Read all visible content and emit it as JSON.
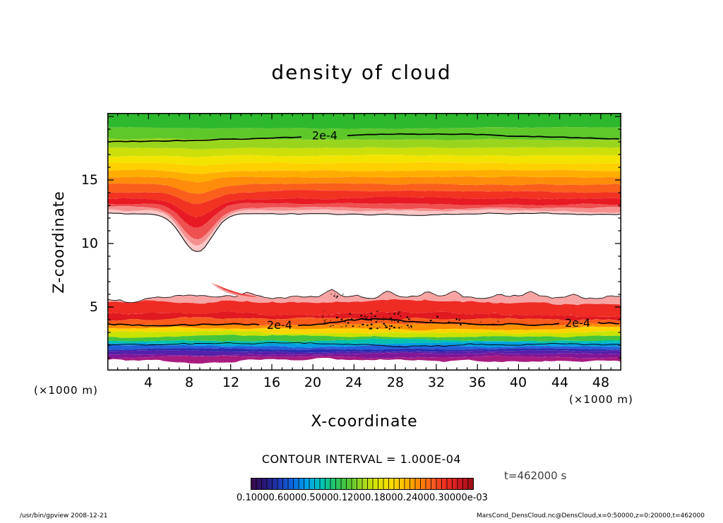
{
  "page": {
    "footer_left": "/usr/bin/gpview  2008-12-21",
    "footer_right": "MarsCond_DensCloud.nc@DensCloud,x=0:50000,z=0:20000,t=462000"
  },
  "chart_data": {
    "type": "filled_contour",
    "title": "density of cloud",
    "xlabel": "X-coordinate",
    "ylabel": "Z-coordinate",
    "x_unit_left": "(×1000 m)",
    "x_unit_right": "(×1000 m)",
    "xlim": [
      0,
      50
    ],
    "zlim": [
      0,
      20.3
    ],
    "x_ticks": [
      4,
      8,
      12,
      16,
      20,
      24,
      28,
      32,
      36,
      40,
      44,
      48
    ],
    "z_ticks": [
      15,
      10,
      5
    ],
    "grid": false,
    "contour_interval": "CONTOUR INTERVAL = 1.000E-04",
    "contour_label": "2e-4",
    "time_label": "t=462000 s",
    "colorbar": {
      "labels_overlapped": "0.10000.60000.50000.12000.18000.24000.30000e-03",
      "colors": [
        "#3a0a4a",
        "#28187c",
        "#1c3ab4",
        "#0a6ae0",
        "#00a0e8",
        "#00c4bc",
        "#22c466",
        "#52c632",
        "#a0d820",
        "#d8e400",
        "#f8df00",
        "#ffbe00",
        "#ff9000",
        "#f86020",
        "#ee2e20",
        "#cf1820",
        "#9c0e14"
      ],
      "segments": 42
    },
    "upper_cloud": {
      "dip_x": 8.7,
      "dip_w": 1.5,
      "outline_bottom": 1.0,
      "edges": [
        {
          "z": 20.4,
          "noise": 0,
          "dip": 0
        },
        {
          "z": 19.1,
          "noise": 0.05,
          "dip": 0
        },
        {
          "z": 18.2,
          "noise": 0.06,
          "dip": 0.03
        },
        {
          "z": 17.5,
          "noise": 0.06,
          "dip": 0.06
        },
        {
          "z": 16.9,
          "noise": 0.06,
          "dip": 0.12
        },
        {
          "z": 16.3,
          "noise": 0.06,
          "dip": 0.2
        },
        {
          "z": 15.75,
          "noise": 0.06,
          "dip": 0.3
        },
        {
          "z": 15.2,
          "noise": 0.06,
          "dip": 0.45
        },
        {
          "z": 14.65,
          "noise": 0.06,
          "dip": 0.65
        },
        {
          "z": 14.1,
          "noise": 0.07,
          "dip": 0.95
        },
        {
          "z": 13.55,
          "noise": 0.07,
          "dip": 1.4
        },
        {
          "z": 13.1,
          "noise": 0.07,
          "dip": 1.95
        },
        {
          "z": 12.8,
          "noise": 0.07,
          "dip": 2.45
        },
        {
          "z": 12.55,
          "noise": 0.08,
          "dip": 2.75
        },
        {
          "z": 12.35,
          "noise": 0.08,
          "dip": 3.05
        }
      ],
      "colors": [
        "#2eb82e",
        "#5ec72a",
        "#9ad51e",
        "#ccdf0a",
        "#f2e400",
        "#ffd000",
        "#ffae00",
        "#ff8c0a",
        "#fa5f1c",
        "#f23322",
        "#e81a24",
        "#ef5050",
        "#f59090",
        "#fac6c6"
      ]
    },
    "lower_cloud": {
      "outline_top": 0.8,
      "edges": [
        {
          "z": 5.72,
          "noise": 0.2,
          "bumps": [
            {
              "x": 13.9,
              "h": 0.35,
              "w": 0.6
            },
            {
              "x": 21.9,
              "h": 0.55,
              "w": 0.5
            },
            {
              "x": 24.3,
              "h": 0.3,
              "w": 0.4
            },
            {
              "x": 27.2,
              "h": 0.45,
              "w": 0.45
            },
            {
              "x": 31.2,
              "h": 0.3,
              "w": 0.5
            },
            {
              "x": 33.8,
              "h": 0.35,
              "w": 0.45
            },
            {
              "x": 38.2,
              "h": 0.3,
              "w": 0.4
            },
            {
              "x": 41.2,
              "h": 0.4,
              "w": 0.45
            },
            {
              "x": 45.5,
              "h": 0.3,
              "w": 0.5
            }
          ]
        },
        {
          "z": 5.38,
          "noise": 0.17
        },
        {
          "z": 4.45,
          "noise": 0.14
        },
        {
          "z": 4.05,
          "noise": 0.12
        },
        {
          "z": 3.68,
          "noise": 0.1
        },
        {
          "z": 3.3,
          "noise": 0.1
        },
        {
          "z": 2.98,
          "noise": 0.09
        },
        {
          "z": 2.68,
          "noise": 0.08
        },
        {
          "z": 2.42,
          "noise": 0.08
        },
        {
          "z": 2.16,
          "noise": 0.07
        },
        {
          "z": 1.94,
          "noise": 0.07
        },
        {
          "z": 1.72,
          "noise": 0.06
        },
        {
          "z": 1.5,
          "noise": 0.06
        },
        {
          "z": 1.28,
          "noise": 0.07
        },
        {
          "z": 1.05,
          "noise": 0.09
        },
        {
          "z": 0.8,
          "noise": 0.13
        }
      ],
      "colors": [
        "#f7a4a4",
        "#ee2c24",
        "#e01a20",
        "#f85c1c",
        "#ff9000",
        "#ffd400",
        "#c8e400",
        "#46c43c",
        "#00c0b0",
        "#009ee2",
        "#2160d8",
        "#2b2cb0",
        "#5520aa",
        "#801698",
        "#a81c80"
      ]
    },
    "contour_lines": [
      {
        "base": 17.9,
        "arch_h": 0.72,
        "arch_x": 30,
        "arch_w": 13,
        "noise": 0.06,
        "width": 1.7,
        "gaps": [
          [
            19.1,
            23.2
          ]
        ],
        "labels": [
          21.15
        ]
      },
      {
        "base": 3.66,
        "noise": 0.13,
        "bumps": [
          {
            "x": 25.2,
            "h": 0.28,
            "w": 1.8
          }
        ],
        "width": 1.7,
        "gaps": [
          [
            15.1,
            18.4
          ],
          [
            44.0,
            47.5
          ]
        ],
        "labels": [
          16.75,
          45.75
        ]
      },
      {
        "base": 2.02,
        "noise": 0.1,
        "width": 0.9,
        "gaps": [],
        "labels": []
      }
    ],
    "speckles": [
      {
        "x_range": [
          20.8,
          29.6
        ],
        "z_range": [
          3.3,
          4.7
        ],
        "count": 80
      },
      {
        "x_range": [
          29.6,
          38.5
        ],
        "z_range": [
          3.4,
          4.3
        ],
        "count": 14
      },
      {
        "x_range": [
          21.2,
          23.2
        ],
        "z_range": [
          5.7,
          6.3
        ],
        "count": 6
      }
    ]
  }
}
